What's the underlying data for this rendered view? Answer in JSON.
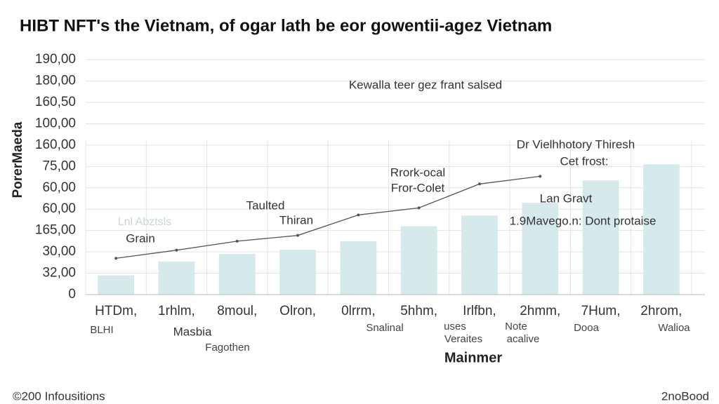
{
  "chart_data": {
    "type": "bar",
    "title": "HIBT NFT's the Vietnam, of ogar lath be eor gowentii-agez Vietnam",
    "y_label": "PorerMaeda",
    "x_label": "Mainmer",
    "categories": [
      "HTDm,",
      "1rhlm,",
      "8moul,",
      "Olron,",
      "0lrrm,",
      "5hhm,",
      "Irlfbn,",
      "2hmm,",
      "7Hum,",
      "2hrom,"
    ],
    "values": [
      0.9,
      1.55,
      1.9,
      2.1,
      2.5,
      3.2,
      3.7,
      4.3,
      5.35,
      6.1
    ],
    "color": "#d6e9eb",
    "line": {
      "color": "#555555",
      "values": [
        1.7,
        2.08,
        2.5,
        2.77,
        3.73,
        4.06,
        5.18,
        5.54,
        null,
        null
      ]
    },
    "ylim": [
      0,
      11.3
    ],
    "yticks": [
      0,
      {
        "value": 1,
        "label": "32,00"
      },
      {
        "value": 2,
        "label": "30,00"
      },
      {
        "value": 3,
        "label": "165,00"
      },
      {
        "value": 4,
        "label": "60,00"
      },
      {
        "value": 5,
        "label": "60,00"
      },
      {
        "value": 6,
        "label": "75,00"
      },
      {
        "value": 7,
        "label": "160,00"
      },
      {
        "value": 8,
        "label": "100,00"
      },
      {
        "value": 9,
        "label": "160,50"
      },
      {
        "value": 10,
        "label": "180,00"
      },
      {
        "value": 11,
        "label": "190,00"
      }
    ],
    "grid": true,
    "annotations": [
      "Kewalla  teer gez frant salsed",
      "Dr Vielhhotory Thiresh",
      "Cet frost:",
      "Rrork-ocal",
      "Fror-Colet",
      "Taulted",
      "Thiran",
      "Grain",
      "Lnl Abztsls",
      "Lan  Gravt",
      "1.9Mavego.n: Dont protaise"
    ],
    "sublabels": [
      "BLHI",
      "Masbia",
      "Fagothen",
      "Snalinal",
      "uses",
      "Veraites",
      "Note",
      "acalive",
      "Dooa",
      "Walioa"
    ],
    "footer_left": "©200 Infousitions",
    "footer_right": "2noBood"
  }
}
